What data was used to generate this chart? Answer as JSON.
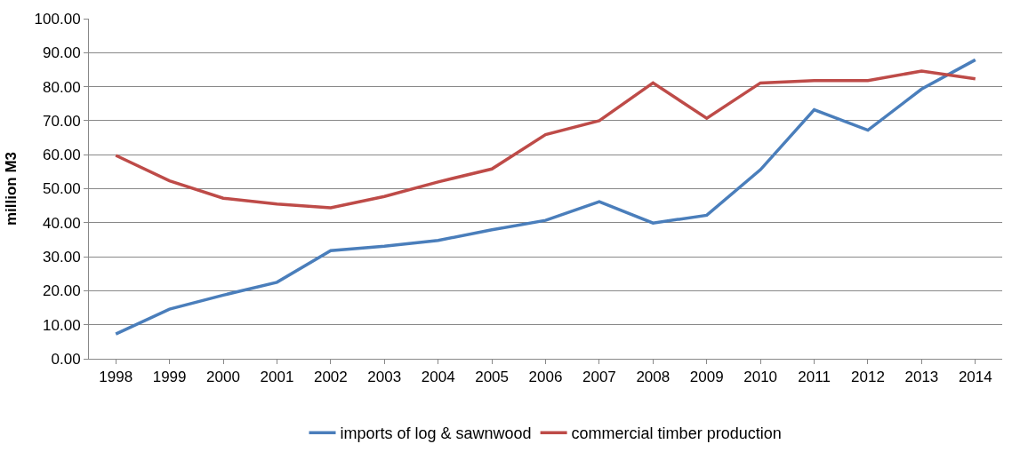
{
  "chart_data": {
    "type": "line",
    "ylabel": "million M3",
    "categories": [
      "1998",
      "1999",
      "2000",
      "2001",
      "2002",
      "2003",
      "2004",
      "2005",
      "2006",
      "2007",
      "2008",
      "2009",
      "2010",
      "2011",
      "2012",
      "2013",
      "2014"
    ],
    "series": [
      {
        "name": "imports of log & sawnwood",
        "color": "#4a7ebb",
        "values": [
          7.3,
          14.6,
          18.7,
          22.5,
          31.8,
          33.1,
          34.8,
          37.9,
          40.7,
          46.2,
          39.9,
          42.2,
          55.6,
          73.2,
          67.2,
          79.3,
          87.9
        ]
      },
      {
        "name": "commercial timber production",
        "color": "#be4b48",
        "values": [
          59.8,
          52.3,
          47.2,
          45.5,
          44.4,
          47.7,
          52.0,
          55.8,
          65.9,
          70.0,
          81.1,
          70.7,
          81.1,
          81.8,
          81.8,
          84.6,
          82.3
        ]
      }
    ],
    "ylim": [
      0,
      100
    ],
    "yticks": [
      {
        "value": 0,
        "label": "0.00"
      },
      {
        "value": 10,
        "label": "10.00"
      },
      {
        "value": 20,
        "label": "20.00"
      },
      {
        "value": 30,
        "label": "30.00"
      },
      {
        "value": 40,
        "label": "40.00"
      },
      {
        "value": 50,
        "label": "50.00"
      },
      {
        "value": 60,
        "label": "60.00"
      },
      {
        "value": 70,
        "label": "70.00"
      },
      {
        "value": 80,
        "label": "80.00"
      },
      {
        "value": 90,
        "label": "90.00"
      },
      {
        "value": 100,
        "label": "100.00"
      }
    ],
    "grid": "y",
    "legend": "bottom",
    "marker": "none",
    "line_style": "solid"
  }
}
